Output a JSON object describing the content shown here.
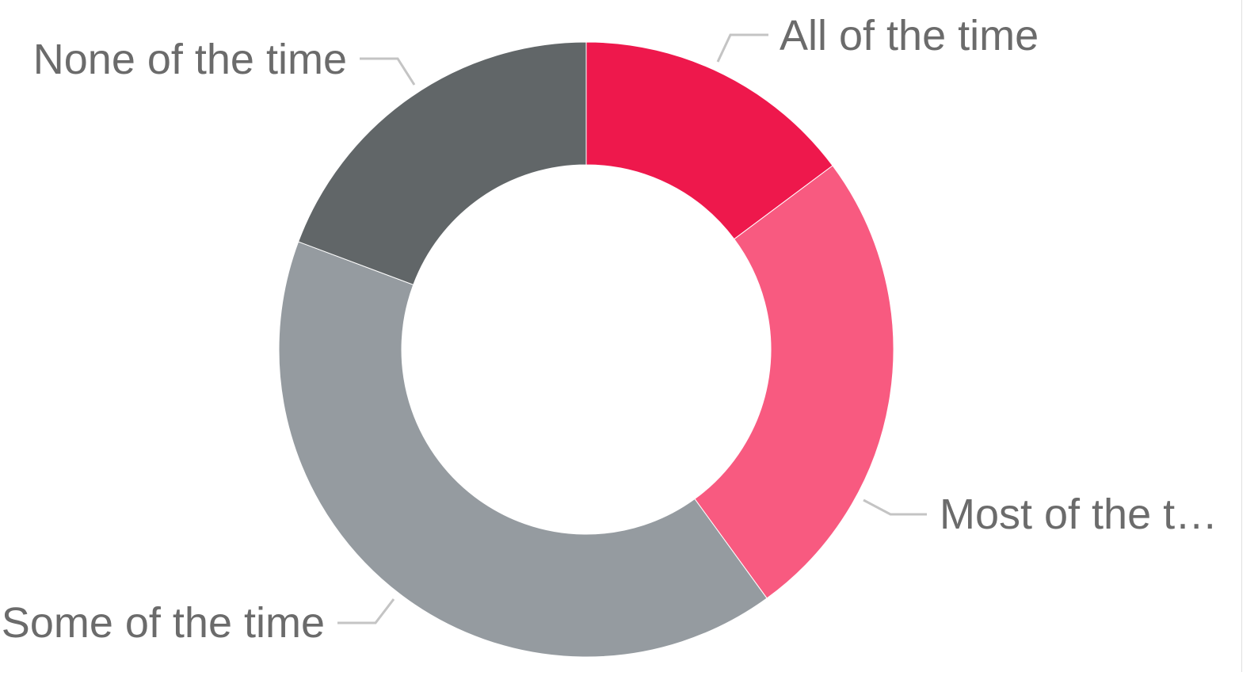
{
  "chart_data": {
    "type": "pie",
    "donut": true,
    "legend": "none",
    "categories": [
      "All of the time",
      "Most of the time",
      "Some of the time",
      "None of the time"
    ],
    "labels_display": [
      "All of the time",
      "Most of the t…",
      "Some of the time",
      "None of the time"
    ],
    "values": [
      14.8,
      25.2,
      40.7,
      19.3
    ],
    "colors": [
      "#ee184c",
      "#f85a80",
      "#959ba0",
      "#616668"
    ],
    "leader_line_color": "#c4c4c4"
  }
}
